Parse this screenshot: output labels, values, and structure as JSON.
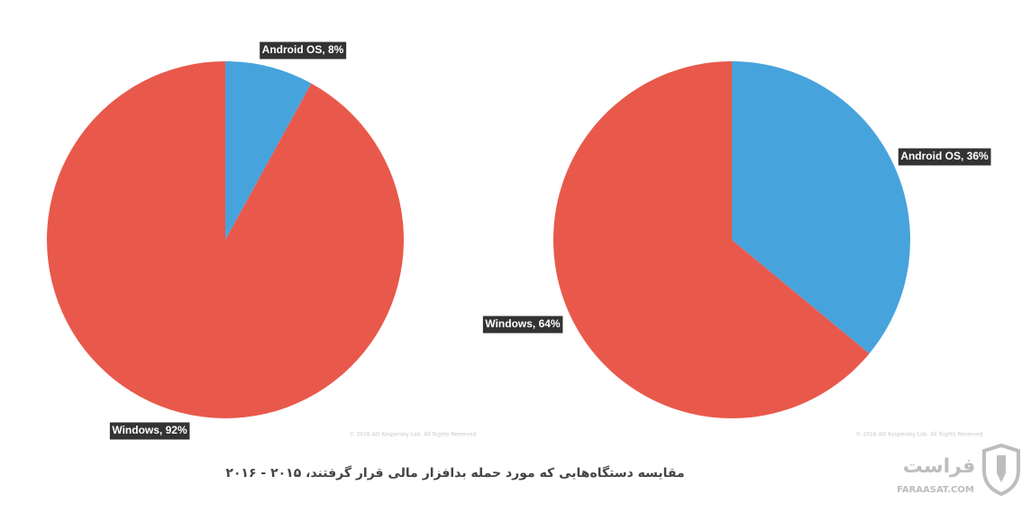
{
  "chart_data": [
    {
      "type": "pie",
      "categories": [
        "Android OS",
        "Windows"
      ],
      "values": [
        8,
        92
      ],
      "value_labels": [
        "Android OS, 8%",
        "Windows, 92%"
      ],
      "colors": [
        "#47a3dc",
        "#e8594b"
      ],
      "copyright": "© 2016 AO Kaspersky Lab. All Rights Reserved"
    },
    {
      "type": "pie",
      "categories": [
        "Android OS",
        "Windows"
      ],
      "values": [
        36,
        64
      ],
      "value_labels": [
        "Android OS, 36%",
        "Windows, 64%"
      ],
      "colors": [
        "#47a3dc",
        "#e8594b"
      ],
      "copyright": "© 2016 AO Kaspersky Lab. All Rights Reserved"
    }
  ],
  "caption": "مقایسه دستگاه‌هایی که مورد حمله بدافزار مالی قرار گرفتند، ۲۰۱۵ - ۲۰۱۶",
  "watermark": {
    "name": "فراست",
    "site": "FARAASAT.COM"
  }
}
